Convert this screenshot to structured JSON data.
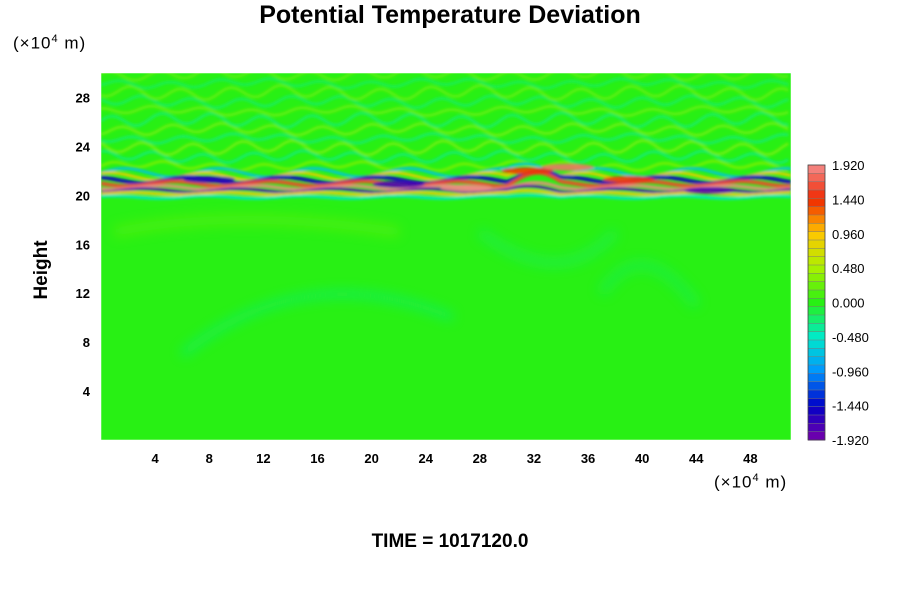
{
  "chart_data": {
    "type": "heatmap",
    "title": "Potential Temperature Deviation",
    "ylabel": "Height",
    "y_unit": {
      "prefix": "(×10",
      "exp": "4",
      "suffix": " m)"
    },
    "x_unit": {
      "prefix": "(×10",
      "exp": "4",
      "suffix": " m)"
    },
    "xlim": [
      0,
      51
    ],
    "ylim": [
      0,
      30
    ],
    "x_ticks": [
      "4",
      "8",
      "12",
      "16",
      "20",
      "24",
      "28",
      "32",
      "36",
      "40",
      "44",
      "48"
    ],
    "x_tick_values": [
      4,
      8,
      12,
      16,
      20,
      24,
      28,
      32,
      36,
      40,
      44,
      48
    ],
    "y_ticks": [
      "4",
      "8",
      "12",
      "16",
      "20",
      "24",
      "28"
    ],
    "y_tick_values": [
      4,
      8,
      12,
      16,
      20,
      24,
      28
    ],
    "colorbar": {
      "range": [
        -1.92,
        1.92
      ],
      "labels": [
        "1.920",
        "1.440",
        "0.960",
        "0.480",
        "0.000",
        "-0.480",
        "-0.960",
        "-1.440",
        "-1.920"
      ],
      "label_values": [
        1.92,
        1.44,
        0.96,
        0.48,
        0.0,
        -0.48,
        -0.96,
        -1.44,
        -1.92
      ],
      "levels": 33
    },
    "field_summary": {
      "background_value": 0.0,
      "strong_layer_height": [
        20,
        22
      ],
      "wave_band_height": [
        22,
        30
      ]
    }
  },
  "time_label": "TIME = 1017120.0"
}
